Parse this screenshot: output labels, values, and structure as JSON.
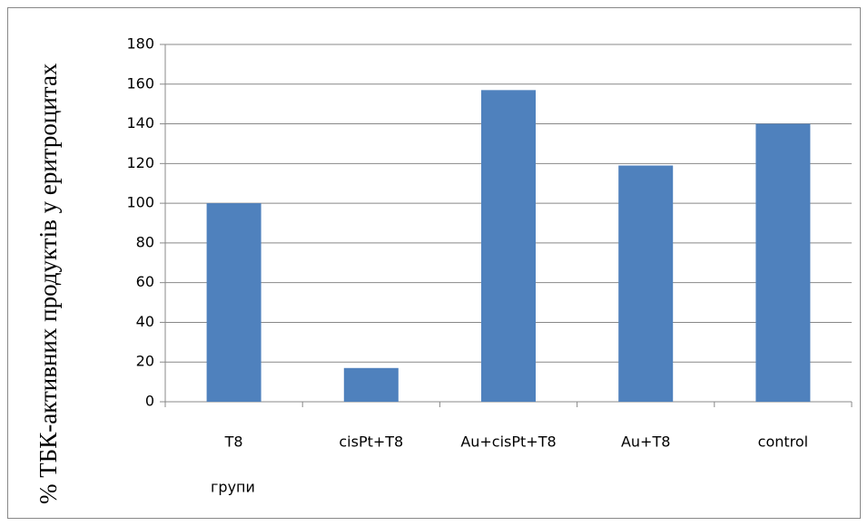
{
  "chart_data": {
    "type": "bar",
    "y_label": "% ТБК-активних продуктів у еритроцитах",
    "x_label": "групи",
    "categories": [
      "T8",
      "cisPt+T8",
      "Au+cisPt+T8",
      "Au+T8",
      "control"
    ],
    "values": [
      100,
      17,
      157,
      119,
      140
    ],
    "color": "#4f81bd",
    "ylim": [
      0,
      180
    ],
    "yticks": [
      0,
      20,
      40,
      60,
      80,
      100,
      120,
      140,
      160,
      180
    ],
    "grid": true
  }
}
